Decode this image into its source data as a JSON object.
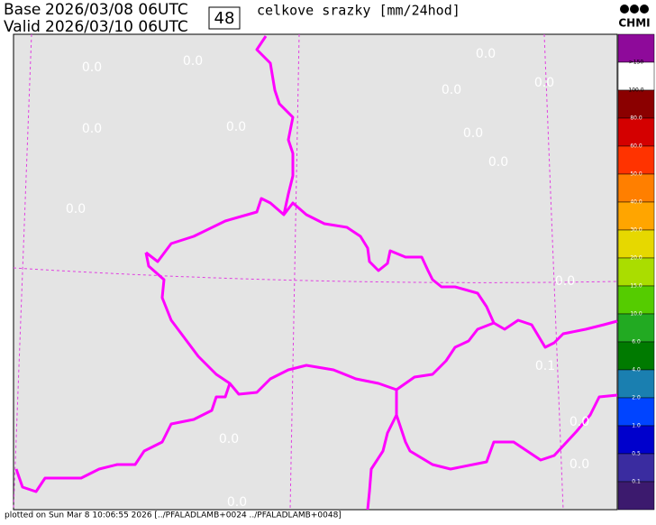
{
  "header": {
    "base_label": "Base",
    "base_time": "2026/03/08 06UTC",
    "valid_label": "Valid",
    "valid_time": "2026/03/10 06UTC",
    "lead": "48",
    "title": "celkove srazky [mm/24hod]",
    "logo": "CHMI"
  },
  "map_labels": [
    "0.0",
    "0.0",
    "0.0",
    "0.0",
    "0.0",
    "0.0",
    "0.0",
    "0.0",
    "0.0",
    "0.0",
    "0.0",
    "0.1",
    "0.0",
    "0.0",
    "0.0",
    "0.0"
  ],
  "legend": {
    "labels": [
      ">150",
      "100.0",
      "80.0",
      "60.0",
      "50.0",
      "40.0",
      "30.0",
      "20.0",
      "15.0",
      "10.0",
      "6.0",
      "4.0",
      "2.0",
      "1.0",
      "0.5",
      "0.1"
    ],
    "colors": [
      "#8e0a9a",
      "#ffffff",
      "#8b0000",
      "#d40000",
      "#ff3300",
      "#ff7f00",
      "#ffa500",
      "#e6d800",
      "#aadd00",
      "#55cc00",
      "#22aa22",
      "#007a00",
      "#1a7fb0",
      "#0044ff",
      "#0000cc",
      "#3a2ca0",
      "#3c1a6e"
    ]
  },
  "footer": "plotted on Sun Mar  8 10:06:55 2026 [../PFALADLAMB+0024 ../PFALADLAMB+0048]"
}
